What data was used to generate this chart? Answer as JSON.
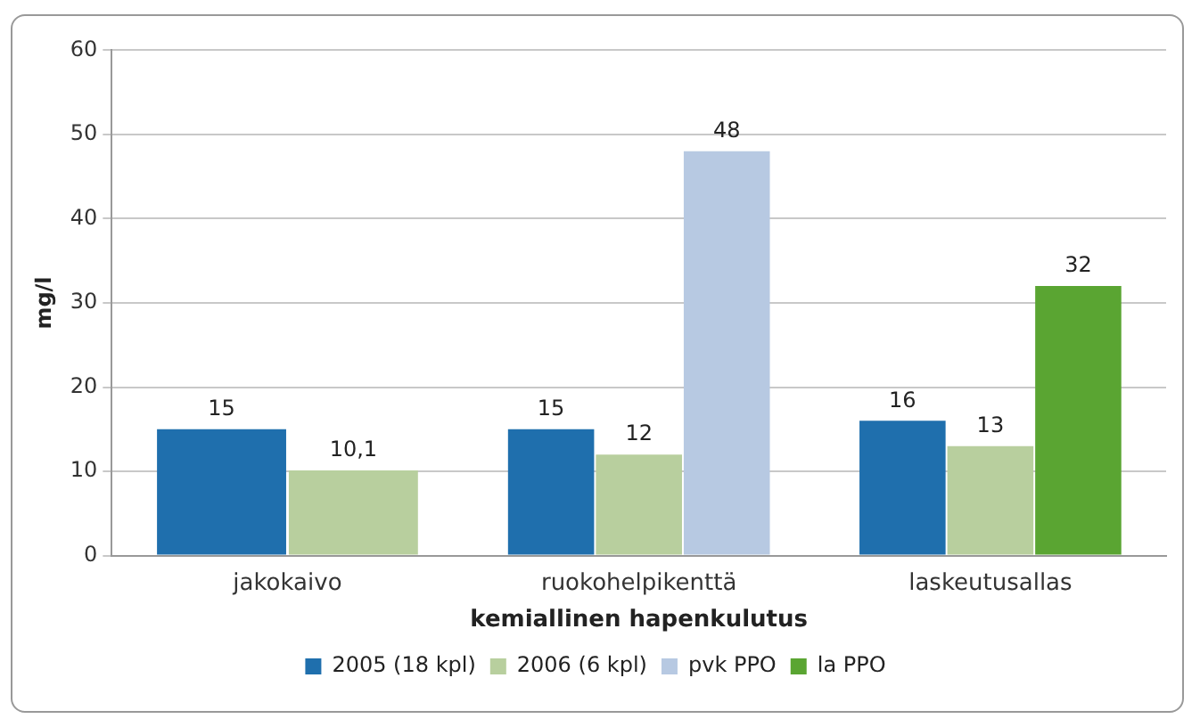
{
  "chart_data": {
    "type": "bar",
    "xlabel": "kemiallinen hapenkulutus",
    "ylabel": "mg/l",
    "categories": [
      "jakokaivo",
      "ruokohelpikenttä",
      "laskeutusallas"
    ],
    "series": [
      {
        "name": "2005 (18 kpl)",
        "color": "#1f6fad",
        "values": [
          15,
          15,
          16
        ],
        "value_labels": [
          "15",
          "15",
          "16"
        ]
      },
      {
        "name": "2006 (6 kpl)",
        "color": "#b8cf9e",
        "values": [
          10.1,
          12,
          13
        ],
        "value_labels": [
          "10,1",
          "12",
          "13"
        ]
      },
      {
        "name": "pvk PPO",
        "color": "#b7c9e2",
        "values": [
          null,
          48,
          null
        ],
        "value_labels": [
          null,
          "48",
          null
        ]
      },
      {
        "name": "la PPO",
        "color": "#5aa532",
        "values": [
          null,
          null,
          32
        ],
        "value_labels": [
          null,
          null,
          "32"
        ]
      }
    ],
    "ylim": [
      0,
      60
    ],
    "yticks": [
      0,
      10,
      20,
      30,
      40,
      50,
      60
    ],
    "grid": "y",
    "legend": "bottom"
  }
}
